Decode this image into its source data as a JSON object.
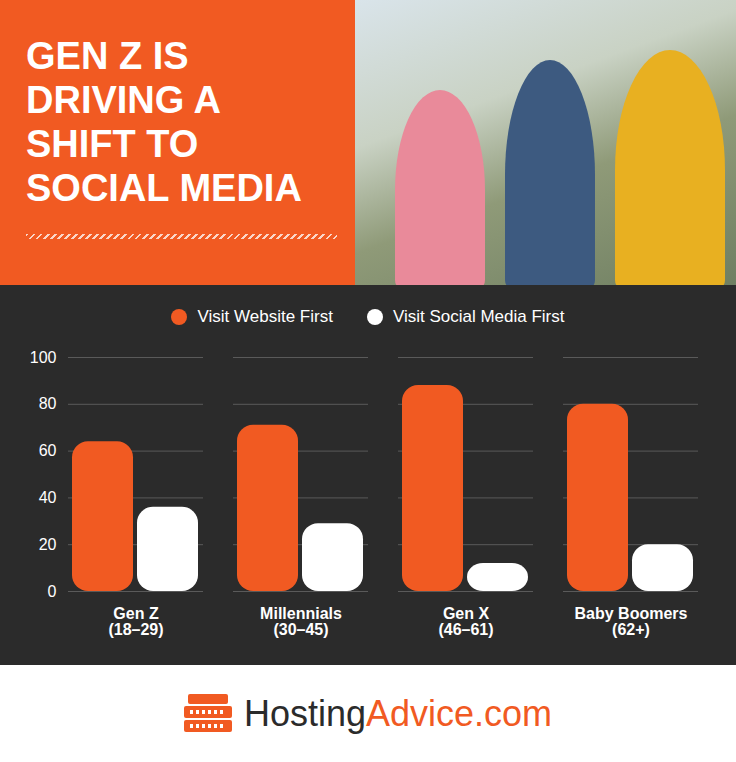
{
  "chart_data": {
    "type": "bar",
    "title": "GEN Z IS DRIVING A SHIFT TO SOCIAL MEDIA",
    "categories": [
      "Gen Z (18–29)",
      "Millennials (30–45)",
      "Gen X (46–61)",
      "Baby Boomers (62+)"
    ],
    "series": [
      {
        "name": "Visit Website First",
        "color": "#f15a22",
        "values": [
          64,
          71,
          88,
          80
        ]
      },
      {
        "name": "Visit Social Media First",
        "color": "#ffffff",
        "values": [
          36,
          29,
          12,
          20
        ]
      }
    ],
    "ylim": [
      0,
      100
    ],
    "yticks": [
      0,
      20,
      40,
      60,
      80,
      100
    ],
    "grid": true,
    "legend": "top",
    "footer": "HostingAdvice.com"
  }
}
